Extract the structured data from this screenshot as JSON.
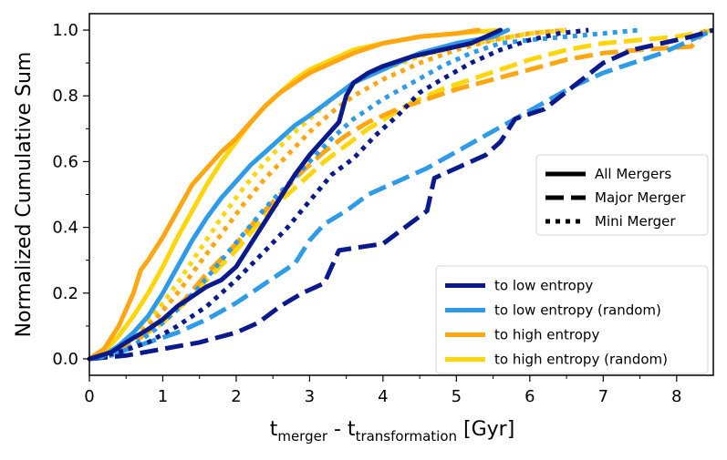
{
  "chart_data": {
    "type": "line",
    "title": "",
    "xlabel": "t_merger - t_transformation [Gyr]",
    "xlabel_parts": {
      "a": "t",
      "a_sub": "merger",
      "mid": " - t",
      "b_sub": "transformation",
      "unit": " [Gyr]"
    },
    "ylabel": "Normalized Cumulative Sum",
    "xlim": [
      0,
      8.5
    ],
    "ylim": [
      -0.05,
      1.05
    ],
    "xticks": [
      0,
      1,
      2,
      3,
      4,
      5,
      6,
      7,
      8
    ],
    "yticks": [
      "0.0",
      "0.2",
      "0.4",
      "0.6",
      "0.8",
      "1.0"
    ],
    "grid": false,
    "colors": {
      "to_low_entropy": "#0a1a8c",
      "to_low_entropy_random": "#2e9be8",
      "to_high_entropy": "#ffa611",
      "to_high_entropy_random": "#ffd60a"
    },
    "style_legend": {
      "placement": "center-right",
      "entries": [
        {
          "label": "All Mergers",
          "style": "solid"
        },
        {
          "label": "Major Merger",
          "style": "dashed"
        },
        {
          "label": "Mini Merger",
          "style": "dotted"
        }
      ]
    },
    "color_legend": {
      "placement": "lower-right",
      "entries": [
        {
          "label": "to low entropy",
          "color_key": "to_low_entropy"
        },
        {
          "label": "to low entropy (random)",
          "color_key": "to_low_entropy_random"
        },
        {
          "label": "to high entropy",
          "color_key": "to_high_entropy"
        },
        {
          "label": "to high entropy (random)",
          "color_key": "to_high_entropy_random"
        }
      ]
    },
    "series": [
      {
        "name": "to high entropy (random) - All Mergers",
        "group": "to_high_entropy_random",
        "style": "solid",
        "points": [
          [
            0,
            0
          ],
          [
            0.2,
            0.02
          ],
          [
            0.4,
            0.07
          ],
          [
            0.6,
            0.13
          ],
          [
            0.8,
            0.2
          ],
          [
            1.0,
            0.28
          ],
          [
            1.2,
            0.37
          ],
          [
            1.4,
            0.45
          ],
          [
            1.6,
            0.53
          ],
          [
            1.8,
            0.6
          ],
          [
            2.0,
            0.66
          ],
          [
            2.2,
            0.72
          ],
          [
            2.4,
            0.77
          ],
          [
            2.6,
            0.81
          ],
          [
            2.8,
            0.85
          ],
          [
            3.0,
            0.88
          ],
          [
            3.3,
            0.91
          ],
          [
            3.6,
            0.94
          ],
          [
            4.0,
            0.96
          ],
          [
            4.5,
            0.98
          ],
          [
            5.0,
            0.99
          ],
          [
            5.6,
            1.0
          ]
        ]
      },
      {
        "name": "to high entropy - All Mergers",
        "group": "to_high_entropy",
        "style": "solid",
        "points": [
          [
            0,
            0
          ],
          [
            0.2,
            0.03
          ],
          [
            0.4,
            0.1
          ],
          [
            0.6,
            0.2
          ],
          [
            0.7,
            0.27
          ],
          [
            0.8,
            0.3
          ],
          [
            1.0,
            0.37
          ],
          [
            1.2,
            0.45
          ],
          [
            1.4,
            0.53
          ],
          [
            1.6,
            0.58
          ],
          [
            1.8,
            0.63
          ],
          [
            2.0,
            0.67
          ],
          [
            2.2,
            0.72
          ],
          [
            2.4,
            0.77
          ],
          [
            2.6,
            0.81
          ],
          [
            2.8,
            0.84
          ],
          [
            3.0,
            0.87
          ],
          [
            3.3,
            0.9
          ],
          [
            3.6,
            0.93
          ],
          [
            4.0,
            0.96
          ],
          [
            4.5,
            0.98
          ],
          [
            5.0,
            0.99
          ],
          [
            5.3,
            1.0
          ]
        ]
      },
      {
        "name": "to low entropy (random) - All Mergers",
        "group": "to_low_entropy_random",
        "style": "solid",
        "points": [
          [
            0,
            0
          ],
          [
            0.2,
            0.01
          ],
          [
            0.4,
            0.04
          ],
          [
            0.6,
            0.08
          ],
          [
            0.8,
            0.13
          ],
          [
            1.0,
            0.2
          ],
          [
            1.2,
            0.28
          ],
          [
            1.4,
            0.36
          ],
          [
            1.6,
            0.43
          ],
          [
            1.8,
            0.49
          ],
          [
            2.0,
            0.54
          ],
          [
            2.2,
            0.59
          ],
          [
            2.4,
            0.63
          ],
          [
            2.6,
            0.67
          ],
          [
            2.8,
            0.71
          ],
          [
            3.0,
            0.74
          ],
          [
            3.3,
            0.79
          ],
          [
            3.6,
            0.84
          ],
          [
            4.0,
            0.88
          ],
          [
            4.5,
            0.93
          ],
          [
            5.0,
            0.96
          ],
          [
            5.5,
            0.98
          ],
          [
            5.7,
            1.0
          ]
        ]
      },
      {
        "name": "to low entropy - All Mergers",
        "group": "to_low_entropy",
        "style": "solid",
        "points": [
          [
            0,
            0
          ],
          [
            0.3,
            0.02
          ],
          [
            0.5,
            0.05
          ],
          [
            0.8,
            0.09
          ],
          [
            1.0,
            0.12
          ],
          [
            1.2,
            0.16
          ],
          [
            1.4,
            0.19
          ],
          [
            1.6,
            0.22
          ],
          [
            1.8,
            0.24
          ],
          [
            2.0,
            0.28
          ],
          [
            2.2,
            0.35
          ],
          [
            2.4,
            0.42
          ],
          [
            2.6,
            0.49
          ],
          [
            2.8,
            0.56
          ],
          [
            3.0,
            0.62
          ],
          [
            3.2,
            0.67
          ],
          [
            3.4,
            0.72
          ],
          [
            3.5,
            0.8
          ],
          [
            3.6,
            0.84
          ],
          [
            3.8,
            0.87
          ],
          [
            4.0,
            0.89
          ],
          [
            4.4,
            0.92
          ],
          [
            4.8,
            0.94
          ],
          [
            5.2,
            0.96
          ],
          [
            5.5,
            0.99
          ],
          [
            5.6,
            1.0
          ]
        ]
      },
      {
        "name": "to high entropy (random) - Major Merger",
        "group": "to_high_entropy_random",
        "style": "dashed",
        "points": [
          [
            0,
            0
          ],
          [
            0.3,
            0.02
          ],
          [
            0.6,
            0.05
          ],
          [
            1.0,
            0.11
          ],
          [
            1.3,
            0.17
          ],
          [
            1.6,
            0.24
          ],
          [
            2.0,
            0.33
          ],
          [
            2.3,
            0.41
          ],
          [
            2.6,
            0.48
          ],
          [
            2.9,
            0.54
          ],
          [
            3.2,
            0.6
          ],
          [
            3.5,
            0.65
          ],
          [
            3.8,
            0.7
          ],
          [
            4.1,
            0.74
          ],
          [
            4.4,
            0.78
          ],
          [
            4.8,
            0.82
          ],
          [
            5.2,
            0.85
          ],
          [
            5.6,
            0.88
          ],
          [
            6.0,
            0.91
          ],
          [
            6.5,
            0.94
          ],
          [
            7.0,
            0.96
          ],
          [
            7.5,
            0.97
          ],
          [
            8.0,
            0.98
          ],
          [
            8.5,
            1.0
          ]
        ]
      },
      {
        "name": "to high entropy - Major Merger",
        "group": "to_high_entropy",
        "style": "dashed",
        "points": [
          [
            0,
            0
          ],
          [
            0.3,
            0.02
          ],
          [
            0.6,
            0.05
          ],
          [
            1.0,
            0.12
          ],
          [
            1.3,
            0.18
          ],
          [
            1.6,
            0.26
          ],
          [
            2.0,
            0.35
          ],
          [
            2.3,
            0.43
          ],
          [
            2.6,
            0.5
          ],
          [
            2.9,
            0.57
          ],
          [
            3.2,
            0.63
          ],
          [
            3.5,
            0.68
          ],
          [
            3.8,
            0.72
          ],
          [
            4.2,
            0.76
          ],
          [
            4.6,
            0.79
          ],
          [
            5.0,
            0.82
          ],
          [
            5.5,
            0.85
          ],
          [
            6.0,
            0.88
          ],
          [
            6.5,
            0.91
          ],
          [
            7.0,
            0.93
          ],
          [
            7.5,
            0.94
          ],
          [
            8.2,
            0.95
          ],
          [
            8.4,
            1.0
          ]
        ]
      },
      {
        "name": "to low entropy (random) - Major Merger",
        "group": "to_low_entropy_random",
        "style": "dashed",
        "points": [
          [
            0,
            0
          ],
          [
            0.4,
            0.02
          ],
          [
            0.8,
            0.05
          ],
          [
            1.2,
            0.08
          ],
          [
            1.6,
            0.12
          ],
          [
            2.0,
            0.17
          ],
          [
            2.4,
            0.23
          ],
          [
            2.8,
            0.29
          ],
          [
            3.0,
            0.36
          ],
          [
            3.2,
            0.41
          ],
          [
            3.5,
            0.45
          ],
          [
            3.8,
            0.5
          ],
          [
            4.2,
            0.54
          ],
          [
            4.6,
            0.58
          ],
          [
            5.0,
            0.63
          ],
          [
            5.4,
            0.68
          ],
          [
            5.8,
            0.73
          ],
          [
            6.2,
            0.78
          ],
          [
            6.6,
            0.83
          ],
          [
            7.0,
            0.87
          ],
          [
            7.4,
            0.9
          ],
          [
            7.8,
            0.93
          ],
          [
            8.2,
            0.97
          ],
          [
            8.5,
            1.0
          ]
        ]
      },
      {
        "name": "to low entropy - Major Merger",
        "group": "to_low_entropy",
        "style": "dashed",
        "points": [
          [
            0,
            0
          ],
          [
            0.5,
            0.01
          ],
          [
            1.0,
            0.03
          ],
          [
            1.5,
            0.05
          ],
          [
            2.0,
            0.08
          ],
          [
            2.3,
            0.11
          ],
          [
            2.6,
            0.16
          ],
          [
            2.9,
            0.2
          ],
          [
            3.2,
            0.23
          ],
          [
            3.4,
            0.33
          ],
          [
            3.7,
            0.34
          ],
          [
            4.0,
            0.35
          ],
          [
            4.3,
            0.4
          ],
          [
            4.6,
            0.45
          ],
          [
            4.7,
            0.55
          ],
          [
            5.0,
            0.58
          ],
          [
            5.4,
            0.62
          ],
          [
            5.6,
            0.66
          ],
          [
            5.8,
            0.73
          ],
          [
            6.2,
            0.76
          ],
          [
            6.6,
            0.83
          ],
          [
            7.0,
            0.9
          ],
          [
            7.4,
            0.94
          ],
          [
            7.8,
            0.96
          ],
          [
            8.2,
            0.98
          ],
          [
            8.5,
            1.0
          ]
        ]
      },
      {
        "name": "to high entropy (random) - Mini Merger",
        "group": "to_high_entropy_random",
        "style": "dotted",
        "points": [
          [
            0,
            0
          ],
          [
            0.3,
            0.02
          ],
          [
            0.6,
            0.07
          ],
          [
            0.9,
            0.14
          ],
          [
            1.2,
            0.23
          ],
          [
            1.5,
            0.33
          ],
          [
            1.8,
            0.43
          ],
          [
            2.1,
            0.52
          ],
          [
            2.4,
            0.6
          ],
          [
            2.7,
            0.67
          ],
          [
            3.0,
            0.73
          ],
          [
            3.3,
            0.79
          ],
          [
            3.6,
            0.84
          ],
          [
            4.0,
            0.88
          ],
          [
            4.5,
            0.92
          ],
          [
            5.0,
            0.95
          ],
          [
            5.5,
            0.97
          ],
          [
            6.0,
            0.99
          ],
          [
            6.5,
            1.0
          ]
        ]
      },
      {
        "name": "to high entropy - Mini Merger",
        "group": "to_high_entropy",
        "style": "dotted",
        "points": [
          [
            0,
            0
          ],
          [
            0.3,
            0.02
          ],
          [
            0.6,
            0.06
          ],
          [
            0.9,
            0.12
          ],
          [
            1.2,
            0.2
          ],
          [
            1.5,
            0.29
          ],
          [
            1.8,
            0.38
          ],
          [
            2.1,
            0.47
          ],
          [
            2.4,
            0.55
          ],
          [
            2.7,
            0.62
          ],
          [
            3.0,
            0.69
          ],
          [
            3.3,
            0.75
          ],
          [
            3.6,
            0.8
          ],
          [
            4.0,
            0.85
          ],
          [
            4.5,
            0.9
          ],
          [
            5.0,
            0.94
          ],
          [
            5.5,
            0.97
          ],
          [
            6.0,
            0.99
          ],
          [
            6.5,
            1.0
          ]
        ]
      },
      {
        "name": "to low entropy (random) - Mini Merger",
        "group": "to_low_entropy_random",
        "style": "dotted",
        "points": [
          [
            0,
            0
          ],
          [
            0.3,
            0.01
          ],
          [
            0.6,
            0.04
          ],
          [
            0.9,
            0.09
          ],
          [
            1.2,
            0.15
          ],
          [
            1.5,
            0.22
          ],
          [
            1.8,
            0.3
          ],
          [
            2.1,
            0.38
          ],
          [
            2.4,
            0.46
          ],
          [
            2.7,
            0.53
          ],
          [
            3.0,
            0.6
          ],
          [
            3.3,
            0.67
          ],
          [
            3.6,
            0.73
          ],
          [
            4.0,
            0.79
          ],
          [
            4.4,
            0.84
          ],
          [
            4.8,
            0.89
          ],
          [
            5.2,
            0.93
          ],
          [
            5.6,
            0.96
          ],
          [
            6.0,
            0.97
          ],
          [
            6.5,
            0.98
          ],
          [
            7.0,
            0.99
          ],
          [
            7.5,
            1.0
          ]
        ]
      },
      {
        "name": "to low entropy - Mini Merger",
        "group": "to_low_entropy",
        "style": "dotted",
        "points": [
          [
            0,
            0
          ],
          [
            0.4,
            0.02
          ],
          [
            0.8,
            0.05
          ],
          [
            1.2,
            0.1
          ],
          [
            1.6,
            0.16
          ],
          [
            2.0,
            0.24
          ],
          [
            2.4,
            0.33
          ],
          [
            2.7,
            0.4
          ],
          [
            3.0,
            0.48
          ],
          [
            3.3,
            0.56
          ],
          [
            3.6,
            0.61
          ],
          [
            3.9,
            0.68
          ],
          [
            4.2,
            0.74
          ],
          [
            4.5,
            0.81
          ],
          [
            4.8,
            0.85
          ],
          [
            5.2,
            0.9
          ],
          [
            5.6,
            0.94
          ],
          [
            6.0,
            0.97
          ],
          [
            6.4,
            0.99
          ],
          [
            6.8,
            1.0
          ]
        ]
      }
    ]
  }
}
